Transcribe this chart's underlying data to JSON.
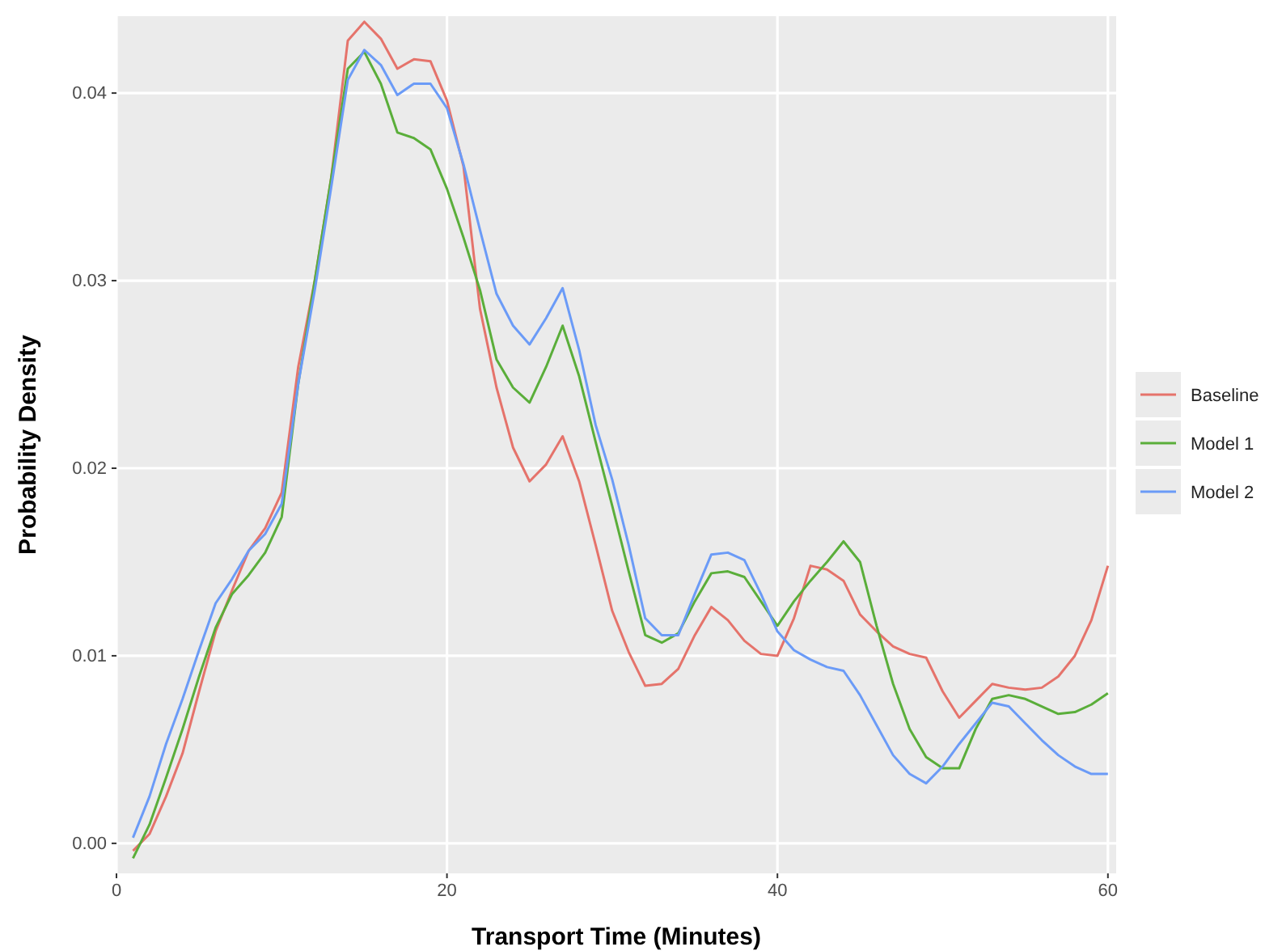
{
  "chart_data": {
    "type": "line",
    "xlabel": "Transport Time (Minutes)",
    "ylabel": "Probability Density",
    "x": [
      1,
      2,
      3,
      4,
      5,
      6,
      7,
      8,
      9,
      10,
      11,
      12,
      13,
      14,
      15,
      16,
      17,
      18,
      19,
      20,
      21,
      22,
      23,
      24,
      25,
      26,
      27,
      28,
      29,
      30,
      31,
      32,
      33,
      34,
      35,
      36,
      37,
      38,
      39,
      40,
      41,
      42,
      43,
      44,
      45,
      46,
      47,
      48,
      49,
      50,
      51,
      52,
      53,
      54,
      55,
      56,
      57,
      58,
      59,
      60
    ],
    "series": [
      {
        "name": "Baseline",
        "color": "#e5736b",
        "values": [
          -0.0004,
          0.0005,
          0.0025,
          0.0048,
          0.0081,
          0.0113,
          0.0135,
          0.0156,
          0.0168,
          0.0187,
          0.0254,
          0.03,
          0.0355,
          0.0428,
          0.0438,
          0.0429,
          0.0413,
          0.0418,
          0.0417,
          0.0396,
          0.0361,
          0.0285,
          0.0243,
          0.0211,
          0.0193,
          0.0202,
          0.0217,
          0.0193,
          0.0159,
          0.0124,
          0.0102,
          0.0084,
          0.0085,
          0.0093,
          0.0111,
          0.0126,
          0.0119,
          0.0108,
          0.0101,
          0.01,
          0.012,
          0.0148,
          0.0146,
          0.014,
          0.0122,
          0.0113,
          0.0105,
          0.0101,
          0.0099,
          0.0081,
          0.0067,
          0.0076,
          0.0085,
          0.0083,
          0.0082,
          0.0083,
          0.0089,
          0.01,
          0.0119,
          0.0148
        ]
      },
      {
        "name": "Model 1",
        "color": "#5aae3a",
        "values": [
          -0.0008,
          0.001,
          0.0035,
          0.0061,
          0.0089,
          0.0115,
          0.0133,
          0.0143,
          0.0155,
          0.0174,
          0.0245,
          0.03,
          0.0355,
          0.0413,
          0.0422,
          0.0405,
          0.0379,
          0.0376,
          0.037,
          0.0349,
          0.0323,
          0.0295,
          0.0258,
          0.0243,
          0.0235,
          0.0254,
          0.0276,
          0.0249,
          0.0214,
          0.018,
          0.0145,
          0.0111,
          0.0107,
          0.0112,
          0.0129,
          0.0144,
          0.0145,
          0.0142,
          0.0129,
          0.0116,
          0.0129,
          0.014,
          0.015,
          0.0161,
          0.015,
          0.0116,
          0.0085,
          0.0061,
          0.0046,
          0.004,
          0.004,
          0.0061,
          0.0077,
          0.0079,
          0.0077,
          0.0073,
          0.0069,
          0.007,
          0.0074,
          0.008
        ]
      },
      {
        "name": "Model 2",
        "color": "#6b9bf7",
        "values": [
          0.0003,
          0.0025,
          0.0053,
          0.0077,
          0.0103,
          0.0128,
          0.0141,
          0.0156,
          0.0165,
          0.0181,
          0.0245,
          0.0295,
          0.035,
          0.0407,
          0.0423,
          0.0415,
          0.0399,
          0.0405,
          0.0405,
          0.0392,
          0.0362,
          0.0327,
          0.0293,
          0.0276,
          0.0266,
          0.028,
          0.0296,
          0.0263,
          0.0223,
          0.0194,
          0.0159,
          0.012,
          0.0111,
          0.0111,
          0.0133,
          0.0154,
          0.0155,
          0.0151,
          0.0133,
          0.0113,
          0.0103,
          0.0098,
          0.0094,
          0.0092,
          0.0079,
          0.0063,
          0.0047,
          0.0037,
          0.0032,
          0.0041,
          0.0053,
          0.0064,
          0.0075,
          0.0073,
          0.0064,
          0.0055,
          0.0047,
          0.0041,
          0.0037,
          0.0037
        ]
      }
    ],
    "xlim": [
      0,
      60.5
    ],
    "xticks": [
      0,
      20,
      40,
      60
    ],
    "ylim": [
      -0.0016,
      0.0441
    ],
    "yticks": [
      {
        "value": 0,
        "label": "0.00"
      },
      {
        "value": 0.01,
        "label": "0.01"
      },
      {
        "value": 0.02,
        "label": "0.02"
      },
      {
        "value": 0.03,
        "label": "0.03"
      },
      {
        "value": 0.04,
        "label": "0.04"
      }
    ],
    "grid": true,
    "legend": "right",
    "line_style": "solid"
  }
}
